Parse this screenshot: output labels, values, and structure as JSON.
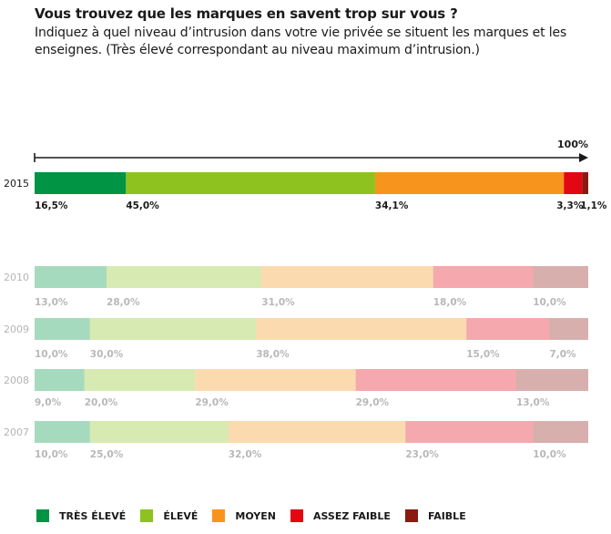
{
  "header": {
    "title": "Vous trouvez que les marques en savent trop sur vous ?",
    "subtitle": "Indiquez à quel niveau d’intrusion dans votre vie privée se situent les marques et les enseignes. (Très élevé correspondant au niveau maximum d’intrusion.)"
  },
  "chart_data": {
    "type": "bar",
    "orientation": "horizontal",
    "stacked": true,
    "axis_label": "100%",
    "xlim": [
      0,
      100
    ],
    "categories": [
      "2015",
      "2010",
      "2009",
      "2008",
      "2007"
    ],
    "series": [
      {
        "name": "TRÈS ÉLEVÉ",
        "color": "#009444",
        "values": [
          16.5,
          13.0,
          10.0,
          9.0,
          10.0
        ],
        "labels": [
          "16,5%",
          "13,0%",
          "10,0%",
          "9,0%",
          "10,0%"
        ]
      },
      {
        "name": "ÉLEVÉ",
        "color": "#8dc21f",
        "values": [
          45.0,
          28.0,
          30.0,
          20.0,
          25.0
        ],
        "labels": [
          "45,0%",
          "28,0%",
          "30,0%",
          "20,0%",
          "25,0%"
        ]
      },
      {
        "name": "MOYEN",
        "color": "#f7941d",
        "values": [
          34.1,
          31.0,
          38.0,
          29.0,
          32.0
        ],
        "labels": [
          "34,1%",
          "31,0%",
          "38,0%",
          "29,0%",
          "32,0%"
        ]
      },
      {
        "name": "ASSEZ FAIBLE",
        "color": "#e30613",
        "values": [
          3.3,
          18.0,
          15.0,
          29.0,
          23.0
        ],
        "labels": [
          "3,3%",
          "18,0%",
          "15,0%",
          "29,0%",
          "23,0%"
        ]
      },
      {
        "name": "FAIBLE",
        "color": "#8b1a10",
        "values": [
          1.1,
          10.0,
          7.0,
          13.0,
          10.0
        ],
        "labels": [
          "1,1%",
          "10,0%",
          "7,0%",
          "13,0%",
          "10,0%"
        ]
      }
    ],
    "faded_categories": [
      "2010",
      "2009",
      "2008",
      "2007"
    ],
    "legend_position": "bottom"
  }
}
